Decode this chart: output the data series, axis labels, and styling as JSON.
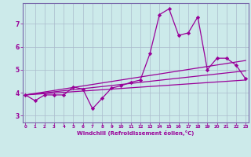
{
  "xlabel": "Windchill (Refroidissement éolien,°C)",
  "bg_color": "#cceaea",
  "line_color": "#990099",
  "grid_color": "#aabbcc",
  "spine_color": "#7766aa",
  "x_ticks": [
    0,
    1,
    2,
    3,
    4,
    5,
    6,
    7,
    8,
    9,
    10,
    11,
    12,
    13,
    14,
    15,
    16,
    17,
    18,
    19,
    20,
    21,
    22,
    23
  ],
  "y_ticks": [
    3,
    4,
    5,
    6,
    7
  ],
  "xlim": [
    -0.3,
    23.3
  ],
  "ylim": [
    2.7,
    7.9
  ],
  "series": [
    {
      "x": [
        0,
        1,
        2,
        3,
        4,
        5,
        6,
        7,
        8,
        9,
        10,
        11,
        12,
        13,
        14,
        15,
        16,
        17,
        18,
        19,
        20,
        21,
        22,
        23
      ],
      "y": [
        3.9,
        3.65,
        3.9,
        3.9,
        3.9,
        4.25,
        4.15,
        3.3,
        3.75,
        4.2,
        4.3,
        4.45,
        4.55,
        5.7,
        7.4,
        7.65,
        6.5,
        6.6,
        7.3,
        5.0,
        5.5,
        5.5,
        5.2,
        4.6
      ],
      "marker": "D",
      "markersize": 2.2,
      "linewidth": 0.9
    },
    {
      "x": [
        0,
        23
      ],
      "y": [
        3.9,
        4.55
      ],
      "linewidth": 0.9
    },
    {
      "x": [
        0,
        23
      ],
      "y": [
        3.9,
        5.4
      ],
      "linewidth": 0.9
    },
    {
      "x": [
        0,
        23
      ],
      "y": [
        3.9,
        4.95
      ],
      "linewidth": 0.9
    }
  ]
}
